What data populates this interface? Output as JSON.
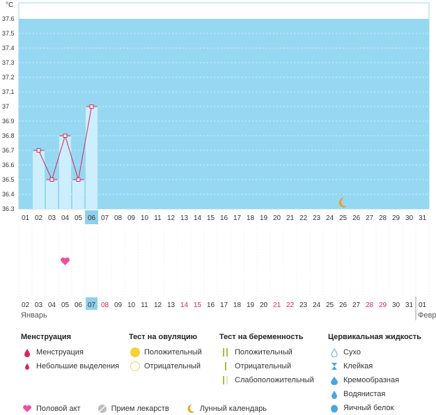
{
  "chart_data": {
    "type": "line",
    "unit": "°C",
    "y_ticks": [
      "37.6",
      "37.5",
      "37.4",
      "37.3",
      "37.2",
      "37.1",
      "37",
      "36.9",
      "36.8",
      "36.7",
      "36.6",
      "36.5",
      "36.4",
      "36.3"
    ],
    "ylim": [
      36.3,
      37.6
    ],
    "grid": true,
    "x_labels_top": [
      "01",
      "02",
      "03",
      "04",
      "05",
      "06",
      "07",
      "08",
      "09",
      "10",
      "11",
      "12",
      "13",
      "14",
      "15",
      "16",
      "17",
      "18",
      "19",
      "20",
      "21",
      "22",
      "23",
      "24",
      "25",
      "26",
      "27",
      "28",
      "29",
      "30",
      "31"
    ],
    "highlight_top_index": 5,
    "series": [
      {
        "x": [
          "02",
          "03",
          "04",
          "05",
          "06"
        ],
        "values": [
          36.7,
          36.5,
          36.8,
          36.5,
          37.0
        ]
      }
    ],
    "moon_day": "25",
    "heart_day": "04",
    "x_labels_bottom": [
      "02",
      "03",
      "04",
      "05",
      "06",
      "07",
      "08",
      "09",
      "10",
      "11",
      "12",
      "13",
      "14",
      "15",
      "16",
      "17",
      "18",
      "19",
      "20",
      "21",
      "22",
      "23",
      "24",
      "25",
      "26",
      "27",
      "28",
      "29",
      "30",
      "31",
      "01"
    ],
    "highlight_bottom_index": 5,
    "red_bottom_labels": [
      "08",
      "14",
      "15",
      "21",
      "22",
      "28",
      "29"
    ],
    "month_left": "Январь",
    "month_right": "Февр"
  },
  "legend": {
    "menstruation": {
      "title": "Менструация",
      "items": [
        "Менструация",
        "Небольшие выделения"
      ]
    },
    "ovulation": {
      "title": "Тест на овуляцию",
      "items": [
        "Положительный",
        "Отрицательный"
      ]
    },
    "pregnancy": {
      "title": "Тест на беременность",
      "items": [
        "Положительный",
        "Отрицательный",
        "Слабоположительный"
      ]
    },
    "cervical": {
      "title": "Цервикальная жидкость",
      "items": [
        "Сухо",
        "Клейкая",
        "Кремообразная",
        "Водянистая",
        "Яичный белок"
      ]
    }
  },
  "bottom_legend": [
    "Половой акт",
    "Прием лекарств",
    "Лунный календарь"
  ],
  "colors": {
    "plot_bg": "#96d8f2",
    "bar": "#cdeefc",
    "line": "#d9265c",
    "red": "#d9265c",
    "heart": "#ef4fa0",
    "moon": "#f0a030",
    "green": "#9bc43a"
  }
}
